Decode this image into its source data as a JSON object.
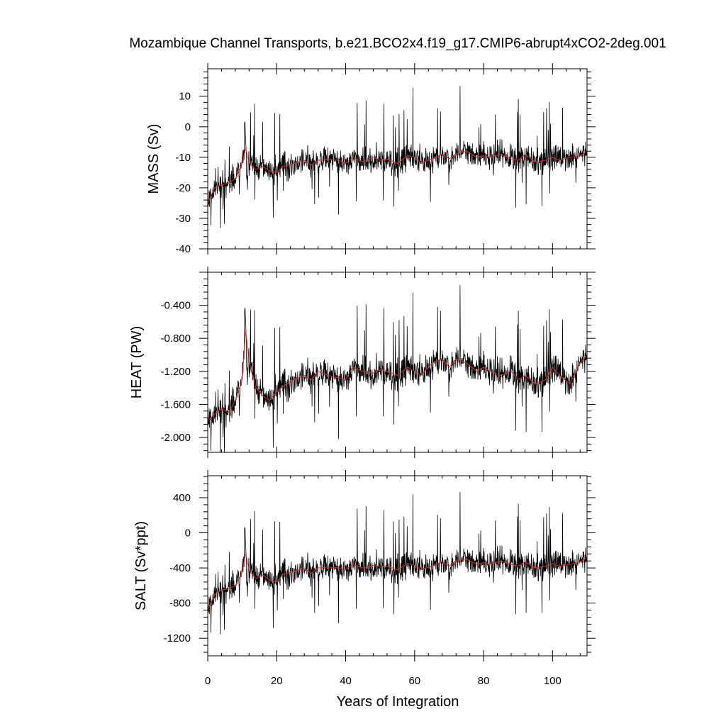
{
  "chart_data": {
    "type": "line",
    "title": "Mozambique Channel Transports, b.e21.BCO2x4.f19_g17.CMIP6-abrupt4xCO2-2deg.001",
    "xlabel": "Years of Integration",
    "xlim": [
      0,
      110
    ],
    "x_ticks": [
      0,
      20,
      40,
      60,
      80,
      100
    ],
    "x_tick_labels": [
      "0",
      "20",
      "40",
      "60",
      "80",
      "100"
    ],
    "raw_color": "#000000",
    "smooth_color": "#e0302a",
    "panels": [
      {
        "id": "mass",
        "ylabel": "MASS (Sv)",
        "ylim": [
          -40,
          19
        ],
        "ticks": [
          -40,
          -30,
          -20,
          -10,
          0,
          10
        ],
        "tick_labels": [
          "-40",
          "-30",
          "-20",
          "-10",
          "0",
          "10"
        ],
        "smoothed": {
          "x": [
            0,
            2,
            4,
            6,
            8,
            10,
            11,
            12,
            14,
            16,
            18,
            20,
            22,
            25,
            28,
            30,
            32,
            35,
            38,
            40,
            42,
            45,
            48,
            50,
            52,
            55,
            58,
            60,
            62,
            65,
            68,
            70,
            72,
            75,
            78,
            80,
            82,
            85,
            88,
            90,
            92,
            95,
            98,
            100,
            102,
            105,
            108,
            110
          ],
          "values": [
            -25,
            -20,
            -19,
            -18.5,
            -17,
            -12,
            -7,
            -12,
            -14,
            -13,
            -14.5,
            -15,
            -13,
            -12,
            -11,
            -12.5,
            -11,
            -10.5,
            -11,
            -12,
            -10,
            -11.5,
            -10,
            -11,
            -10.5,
            -12,
            -9.5,
            -10,
            -12,
            -10.5,
            -9,
            -10.5,
            -9,
            -8,
            -10,
            -9.5,
            -10,
            -9,
            -10.5,
            -11,
            -9,
            -11.5,
            -11,
            -10,
            -11,
            -10,
            -9.5,
            -8
          ]
        }
      },
      {
        "id": "heat",
        "ylabel": "HEAT (PW)",
        "ylim": [
          -2.18,
          0.0
        ],
        "ticks": [
          -2.0,
          -1.6,
          -1.2,
          -0.8,
          -0.4
        ],
        "tick_labels": [
          "-2.000",
          "-1.600",
          "-1.200",
          "-0.800",
          "-0.400"
        ],
        "smoothed": {
          "x": [
            0,
            2,
            4,
            6,
            8,
            10,
            11,
            12,
            14,
            16,
            18,
            20,
            22,
            25,
            28,
            30,
            32,
            35,
            38,
            40,
            42,
            45,
            48,
            50,
            52,
            55,
            58,
            60,
            62,
            65,
            68,
            70,
            72,
            75,
            78,
            80,
            82,
            85,
            88,
            90,
            92,
            95,
            98,
            100,
            102,
            105,
            108,
            110
          ],
          "values": [
            -1.8,
            -1.72,
            -1.65,
            -1.7,
            -1.55,
            -1.3,
            -0.7,
            -1.1,
            -1.4,
            -1.5,
            -1.55,
            -1.45,
            -1.38,
            -1.3,
            -1.25,
            -1.3,
            -1.2,
            -1.25,
            -1.28,
            -1.3,
            -1.15,
            -1.2,
            -1.22,
            -1.18,
            -1.2,
            -1.25,
            -1.15,
            -1.2,
            -1.25,
            -1.1,
            -1.05,
            -1.15,
            -1.05,
            -1.1,
            -1.2,
            -1.15,
            -1.2,
            -1.25,
            -1.2,
            -1.3,
            -1.25,
            -1.35,
            -1.3,
            -1.15,
            -1.25,
            -1.35,
            -1.1,
            -1.0
          ]
        }
      },
      {
        "id": "salt",
        "ylabel": "SALT (Sv*ppt)",
        "ylim": [
          -1400,
          650
        ],
        "ticks": [
          -1200,
          -800,
          -400,
          0,
          400
        ],
        "tick_labels": [
          "-1200",
          "-800",
          "-400",
          "0",
          "400"
        ],
        "smoothed": {
          "x": [
            0,
            2,
            4,
            6,
            8,
            10,
            11,
            12,
            14,
            16,
            18,
            20,
            22,
            25,
            28,
            30,
            32,
            35,
            38,
            40,
            42,
            45,
            48,
            50,
            52,
            55,
            58,
            60,
            62,
            65,
            68,
            70,
            72,
            75,
            78,
            80,
            82,
            85,
            88,
            90,
            92,
            95,
            98,
            100,
            102,
            105,
            108,
            110
          ],
          "values": [
            -880,
            -700,
            -650,
            -640,
            -600,
            -450,
            -230,
            -430,
            -520,
            -480,
            -540,
            -560,
            -470,
            -440,
            -400,
            -460,
            -400,
            -390,
            -400,
            -420,
            -360,
            -400,
            -370,
            -390,
            -380,
            -420,
            -350,
            -370,
            -420,
            -380,
            -330,
            -380,
            -320,
            -300,
            -360,
            -340,
            -360,
            -320,
            -360,
            -380,
            -330,
            -400,
            -380,
            -350,
            -380,
            -360,
            -330,
            -280
          ]
        }
      }
    ]
  }
}
